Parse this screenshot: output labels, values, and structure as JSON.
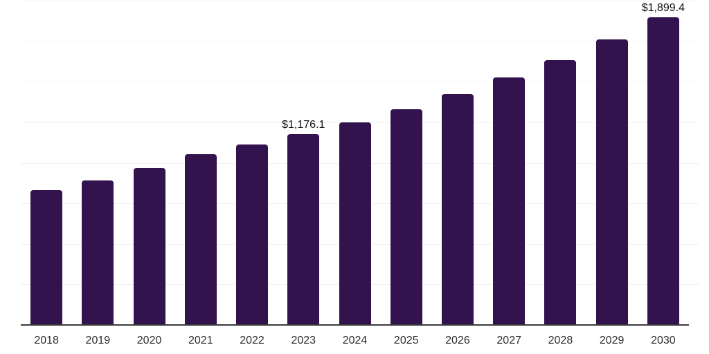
{
  "chart_data": {
    "type": "bar",
    "title": "",
    "xlabel": "",
    "ylabel": "",
    "categories": [
      "2018",
      "2019",
      "2020",
      "2021",
      "2022",
      "2023",
      "2024",
      "2025",
      "2026",
      "2027",
      "2028",
      "2029",
      "2030"
    ],
    "series": [
      {
        "name": "market-value",
        "values": [
          830,
          890,
          966,
          1054,
          1113,
          1176.1,
          1250,
          1331,
          1425,
          1525,
          1634,
          1762,
          1899.4
        ]
      }
    ],
    "data_labels": [
      {
        "category": "2023",
        "text": "$1,176.1"
      },
      {
        "category": "2030",
        "text": "$1,899.4"
      }
    ],
    "ylim": [
      0,
      2000
    ],
    "gridline_step": 250,
    "grid": "horizontal-only",
    "legend_position": "none",
    "y_axis_tick_labels_visible": false,
    "colors": {
      "bar": "#33134E",
      "gridline": "#f2f2f2",
      "axis_line": "#3a3a3a",
      "tick_label": "#2e2e2e",
      "data_label": "#111111"
    }
  }
}
